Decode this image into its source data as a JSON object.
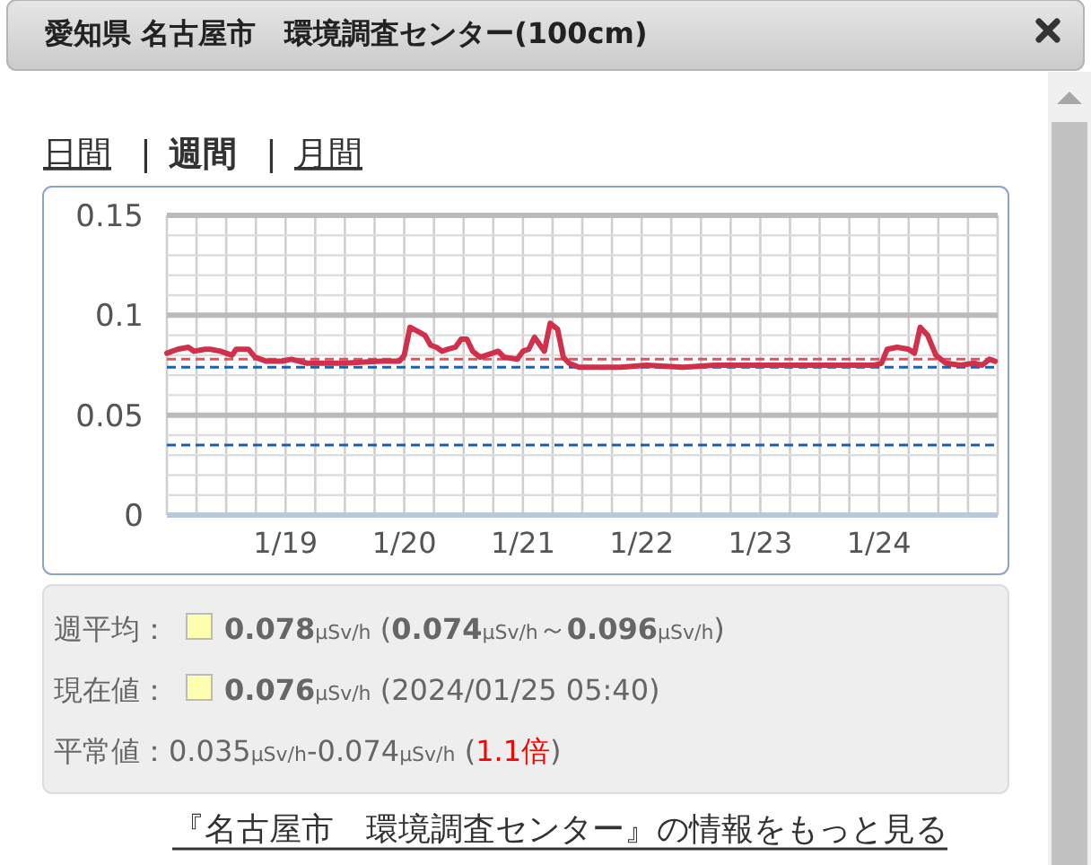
{
  "chart_data": {
    "type": "line",
    "title": "愛知県 名古屋市　環境調査センター(100cm)",
    "annotations": [
      "日間",
      "|",
      "週間",
      "|",
      "月間",
      "週平均：",
      "0.078",
      "μSv/h",
      " (",
      "0.074",
      "μSv/h",
      "～",
      "0.096",
      "μSv/h",
      ")",
      "現在値：",
      "0.076",
      "μSv/h",
      " (2024/01/25 05:40)",
      "平常値：0.035",
      "μSv/h",
      "-0.074",
      "μSv/h",
      " (",
      "1.1倍",
      ")",
      "『名古屋市　環境調査センター』の情報をもっと見る"
    ],
    "x": [
      "2024-01-18T00:00",
      "2024-01-18T02:10",
      "2024-01-18T04:20",
      "2024-01-18T05:30",
      "2024-01-18T07:40",
      "2024-01-18T08:50",
      "2024-01-18T10:50",
      "2024-01-18T13:10",
      "2024-01-18T14:00",
      "2024-01-18T16:30",
      "2024-01-18T17:50",
      "2024-01-18T20:10",
      "2024-01-18T23:20",
      "2024-01-19T01:10",
      "2024-01-19T04:20",
      "2024-01-19T11:50",
      "2024-01-19T19:10",
      "2024-01-19T23:00",
      "2024-01-20T00:00",
      "2024-01-20T01:10",
      "2024-01-20T04:10",
      "2024-01-20T05:20",
      "2024-01-20T06:30",
      "2024-01-20T07:40",
      "2024-01-20T08:50",
      "2024-01-20T10:20",
      "2024-01-20T11:30",
      "2024-01-20T12:40",
      "2024-01-20T13:50",
      "2024-01-20T15:20",
      "2024-01-20T17:50",
      "2024-01-20T19:00",
      "2024-01-20T20:10",
      "2024-01-20T22:50",
      "2024-01-21T00:00",
      "2024-01-21T01:10",
      "2024-01-21T02:20",
      "2024-01-21T04:20",
      "2024-01-21T05:30",
      "2024-01-21T07:00",
      "2024-01-21T08:10",
      "2024-01-21T09:20",
      "2024-01-21T11:20",
      "2024-01-21T19:50",
      "2024-01-22T01:00",
      "2024-01-22T08:20",
      "2024-01-22T14:40",
      "2024-01-22T20:50",
      "2024-01-23T03:10",
      "2024-01-23T15:40",
      "2024-01-23T23:00",
      "2024-01-24T00:30",
      "2024-01-24T01:40",
      "2024-01-24T03:40",
      "2024-01-24T06:00",
      "2024-01-24T07:10",
      "2024-01-24T08:20",
      "2024-01-24T09:50",
      "2024-01-24T11:30",
      "2024-01-24T13:30",
      "2024-01-24T16:30",
      "2024-01-24T19:10",
      "2024-01-24T20:50",
      "2024-01-24T22:20",
      "2024-01-24T23:30"
    ],
    "series": [
      {
        "color": "#d0304a",
        "values": [
          0.081,
          0.083,
          0.084,
          0.082,
          0.083,
          0.083,
          0.082,
          0.08,
          0.083,
          0.083,
          0.079,
          0.077,
          0.077,
          0.078,
          0.076,
          0.076,
          0.077,
          0.077,
          0.08,
          0.094,
          0.09,
          0.085,
          0.084,
          0.082,
          0.083,
          0.084,
          0.088,
          0.088,
          0.082,
          0.079,
          0.081,
          0.082,
          0.079,
          0.078,
          0.082,
          0.083,
          0.089,
          0.082,
          0.096,
          0.093,
          0.079,
          0.076,
          0.074,
          0.074,
          0.075,
          0.074,
          0.075,
          0.075,
          0.075,
          0.075,
          0.075,
          0.076,
          0.083,
          0.084,
          0.083,
          0.081,
          0.094,
          0.09,
          0.08,
          0.076,
          0.075,
          0.076,
          0.075,
          0.078,
          0.077
        ]
      }
    ],
    "xlim": [
      "2024-01-18T00:00",
      "2024-01-25T00:00"
    ],
    "xticks": [
      {
        "value": "2024-01-18T00:00",
        "label": null
      },
      {
        "value": "2024-01-18T06:00",
        "label": null
      },
      {
        "value": "2024-01-18T12:00",
        "label": null
      },
      {
        "value": "2024-01-18T18:00",
        "label": null
      },
      {
        "value": "2024-01-19T00:00",
        "label": "1/19"
      },
      {
        "value": "2024-01-19T06:00",
        "label": null
      },
      {
        "value": "2024-01-19T12:00",
        "label": null
      },
      {
        "value": "2024-01-19T18:00",
        "label": null
      },
      {
        "value": "2024-01-20T00:00",
        "label": "1/20"
      },
      {
        "value": "2024-01-20T06:00",
        "label": null
      },
      {
        "value": "2024-01-20T12:00",
        "label": null
      },
      {
        "value": "2024-01-20T18:00",
        "label": null
      },
      {
        "value": "2024-01-21T00:00",
        "label": "1/21"
      },
      {
        "value": "2024-01-21T06:00",
        "label": null
      },
      {
        "value": "2024-01-21T12:00",
        "label": null
      },
      {
        "value": "2024-01-21T18:00",
        "label": null
      },
      {
        "value": "2024-01-22T00:00",
        "label": "1/22"
      },
      {
        "value": "2024-01-22T06:00",
        "label": null
      },
      {
        "value": "2024-01-22T12:00",
        "label": null
      },
      {
        "value": "2024-01-22T18:00",
        "label": null
      },
      {
        "value": "2024-01-23T00:00",
        "label": "1/23"
      },
      {
        "value": "2024-01-23T06:00",
        "label": null
      },
      {
        "value": "2024-01-23T12:00",
        "label": null
      },
      {
        "value": "2024-01-23T18:00",
        "label": null
      },
      {
        "value": "2024-01-24T00:00",
        "label": "1/24"
      },
      {
        "value": "2024-01-24T06:00",
        "label": null
      },
      {
        "value": "2024-01-24T12:00",
        "label": null
      },
      {
        "value": "2024-01-24T18:00",
        "label": null
      },
      {
        "value": "2024-01-25T00:00",
        "label": null
      }
    ],
    "ylim": [
      0,
      0.15
    ],
    "yticks": [
      0,
      {
        "value": 0.01,
        "label": null
      },
      {
        "value": 0.02,
        "label": null
      },
      {
        "value": 0.03,
        "label": null
      },
      {
        "value": 0.04,
        "label": null
      },
      0.05,
      {
        "value": 0.06,
        "label": null
      },
      {
        "value": 0.07,
        "label": null
      },
      {
        "value": 0.08,
        "label": null
      },
      {
        "value": 0.09,
        "label": null
      },
      0.1,
      {
        "value": 0.11,
        "label": null
      },
      {
        "value": 0.12,
        "label": null
      },
      {
        "value": 0.13,
        "label": null
      },
      {
        "value": 0.14,
        "label": null
      },
      0.15
    ],
    "ref_lines": [
      {
        "axis": "y",
        "value": 0.078,
        "color": "#e8505e",
        "line_style": "dashed"
      },
      {
        "axis": "y",
        "value": 0.074,
        "color": "#1f5fb0",
        "line_style": "dashed"
      },
      {
        "axis": "y",
        "value": 0.035,
        "color": "#1f5fb0",
        "line_style": "dashed"
      }
    ],
    "grid": true,
    "marker": "none",
    "line_style": "solid"
  }
}
